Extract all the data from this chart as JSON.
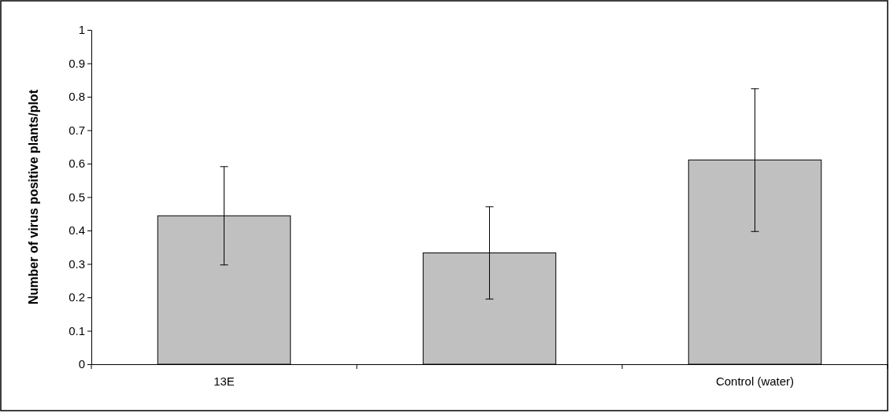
{
  "chart_data": {
    "type": "bar",
    "ylabel": "Number of virus positive plants/plot",
    "categories": [
      "13E",
      null,
      "Control (water)"
    ],
    "values": [
      0.444,
      0.333,
      0.611
    ],
    "color": "#c0c0c0",
    "errors": [
      [
        0.297,
        0.591
      ],
      [
        0.195,
        0.471
      ],
      [
        0.397,
        0.824
      ]
    ],
    "ylim": [
      0,
      1
    ],
    "yticks": [
      0,
      0.1,
      0.2,
      0.3,
      0.4,
      0.5,
      0.6,
      0.7,
      0.8,
      0.9,
      1
    ],
    "grid": false
  }
}
